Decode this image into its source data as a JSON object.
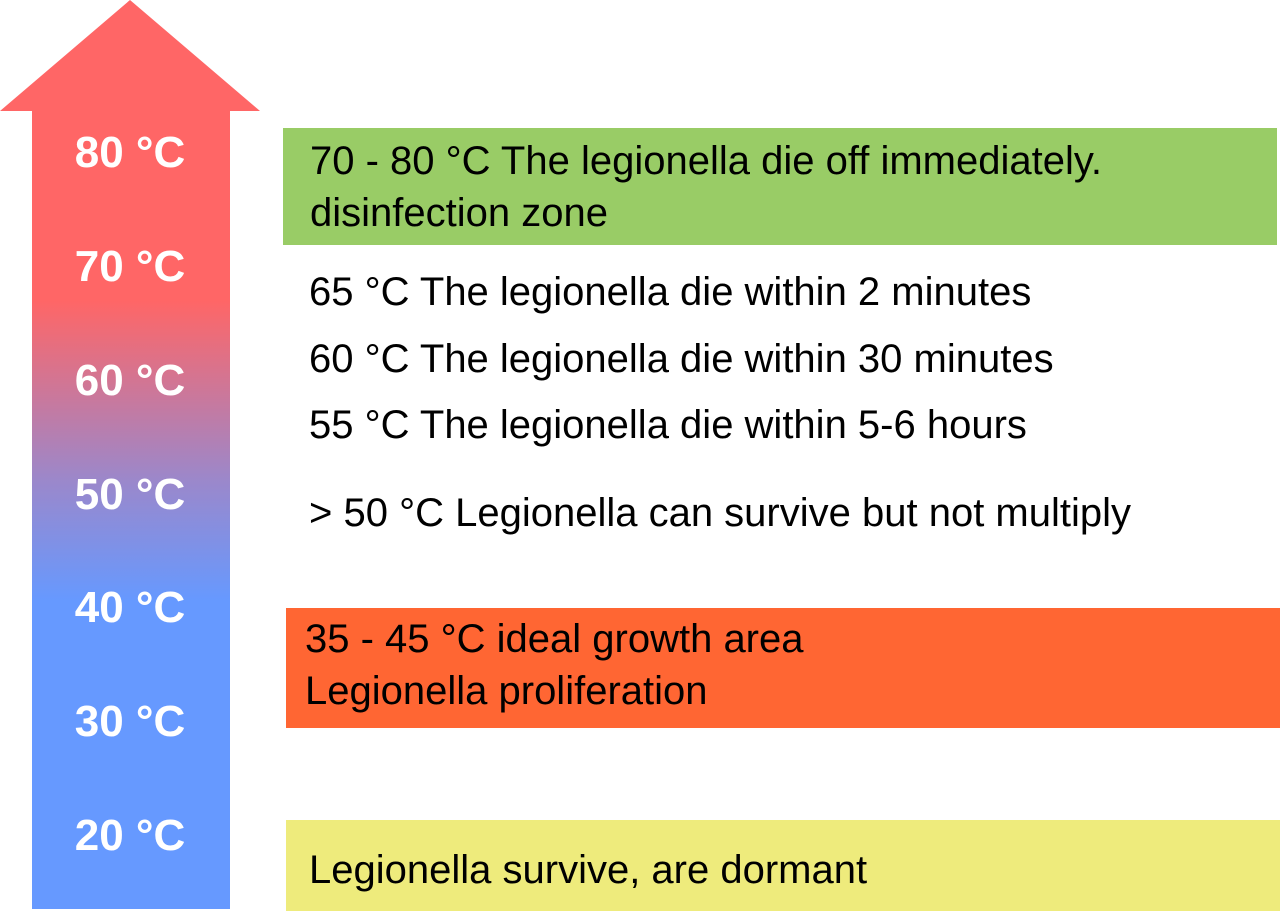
{
  "colors": {
    "arrow_top": "#ff6666",
    "arrow_mid": "#9a88cc",
    "arrow_bottom": "#6699ff",
    "disinfection_zone": "#99cc66",
    "growth_zone": "#ff6633",
    "dormant_zone": "#eeeb7c",
    "temperature_text": "#ffffff"
  },
  "temperature_scale": {
    "labels": [
      "80 °C",
      "70 °C",
      "60 °C",
      "50 °C",
      "40 °C",
      "30 °C",
      "20 °C"
    ]
  },
  "zones": {
    "disinfection": {
      "line1": "70 - 80 °C The legionella die off immediately.",
      "line2": "disinfection zone"
    },
    "growth": {
      "line1": "35 - 45 °C ideal growth area",
      "line2": "Legionella proliferation"
    },
    "dormant": {
      "line1": "Legionella survive, are dormant"
    }
  },
  "facts": [
    "65 °C The legionella die within 2 minutes",
    "60 °C The legionella die within 30 minutes",
    "55 °C The legionella die within 5-6 hours",
    "> 50 °C Legionella can survive but not multiply"
  ]
}
